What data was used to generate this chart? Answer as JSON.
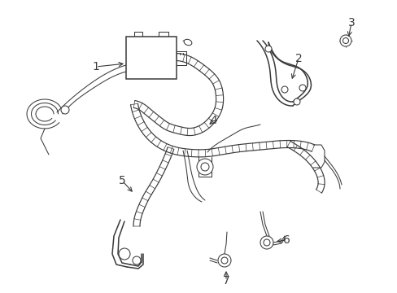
{
  "background_color": "#ffffff",
  "line_color": "#3a3a3a",
  "figsize": [
    4.89,
    3.6
  ],
  "dpi": 100,
  "lw_main": 1.1,
  "lw_thin": 0.75,
  "lw_harness": 0.85
}
